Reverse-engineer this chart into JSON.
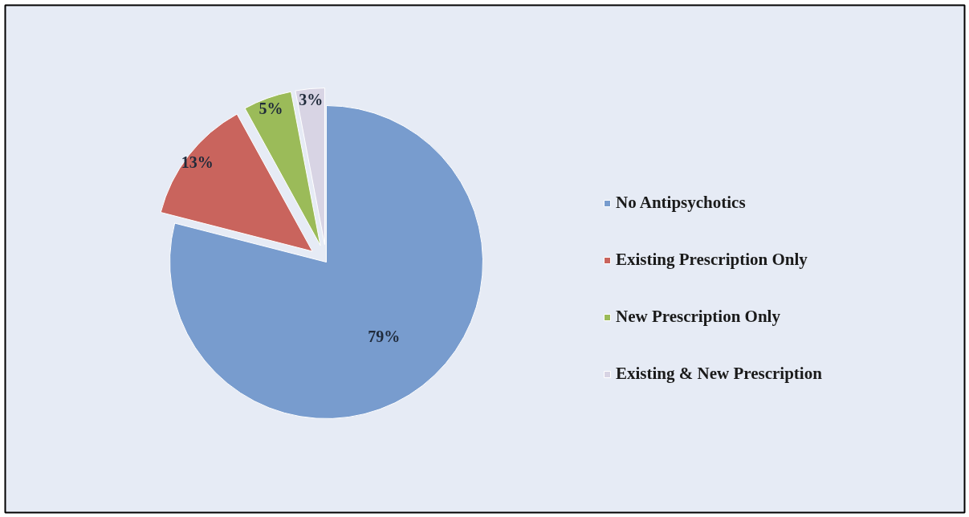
{
  "chart_data": {
    "type": "pie",
    "categories": [
      "No Antipsychotics",
      "Existing Prescription Only",
      "New Prescription Only",
      "Existing & New Prescription"
    ],
    "values": [
      79,
      13,
      5,
      3
    ],
    "colors": [
      "#789cce",
      "#c9645d",
      "#9bbb59",
      "#d8d4e4"
    ],
    "value_labels": [
      "79%",
      "13%",
      "5%",
      "3%"
    ],
    "legend": "right"
  }
}
